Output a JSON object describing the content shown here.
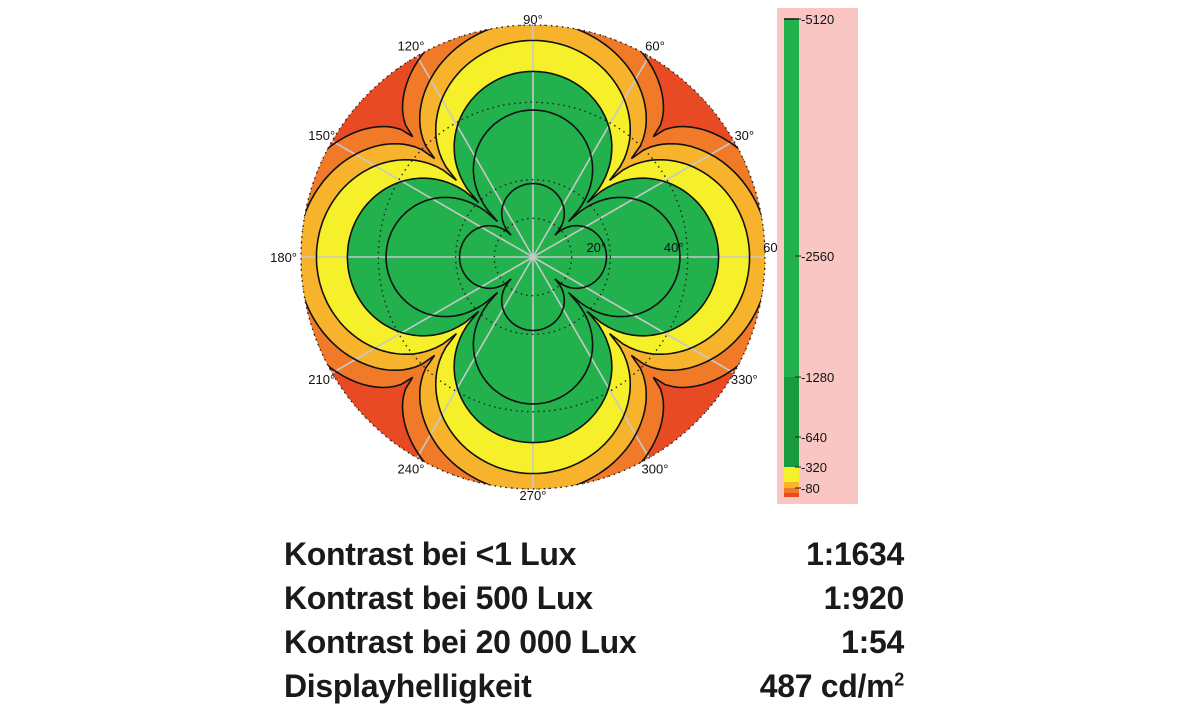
{
  "chart_data": {
    "type": "polar-contour",
    "title": "",
    "angle_labels": [
      "90°",
      "60°",
      "120°",
      "30°",
      "150°",
      "180°",
      "330°",
      "210°",
      "240°",
      "300°",
      "270°"
    ],
    "radial_labels": [
      "20°",
      "40°",
      "60°"
    ],
    "radial_ticks_deg": [
      20,
      40,
      60
    ],
    "radial_max_deg": 60,
    "colorbar": {
      "ticks": [
        "5120",
        "2560",
        "1280",
        "640",
        "320",
        "80"
      ],
      "tick_values": [
        5120,
        2560,
        1280,
        640,
        320,
        80
      ],
      "bands": [
        {
          "min": 640,
          "max": 5120,
          "color": "#22b14c"
        },
        {
          "min": 320,
          "max": 640,
          "color": "#f5f029"
        },
        {
          "min": 160,
          "max": 320,
          "color": "#f7b32b"
        },
        {
          "min": 80,
          "max": 160,
          "color": "#f07a28"
        },
        {
          "min": 0,
          "max": 80,
          "color": "#e84a23"
        }
      ]
    },
    "contour_levels": [
      2560,
      1280,
      640,
      320,
      160,
      80
    ],
    "contour_radius_at_axis_deg": [
      19,
      38,
      48,
      56,
      61,
      66
    ],
    "contour_radius_at_diagonal_deg": [
      8,
      13,
      20,
      28,
      36,
      44
    ],
    "colors": {
      "green": "#22b14c",
      "dark_green": "#1a9a3e",
      "yellow": "#f5f029",
      "light_orange": "#f7b32b",
      "orange": "#f07a28",
      "red": "#e84a23",
      "colorbar_bg": "#f9c6c4"
    }
  },
  "stats": [
    {
      "label": "Kontrast bei <1 Lux",
      "value": "1:1634"
    },
    {
      "label": "Kontrast bei 500 Lux",
      "value": "1:920"
    },
    {
      "label": "Kontrast bei 20 000 Lux",
      "value": "1:54"
    },
    {
      "label": "Displayhelligkeit",
      "value": "487 cd/m",
      "unit_sup": "2"
    }
  ]
}
